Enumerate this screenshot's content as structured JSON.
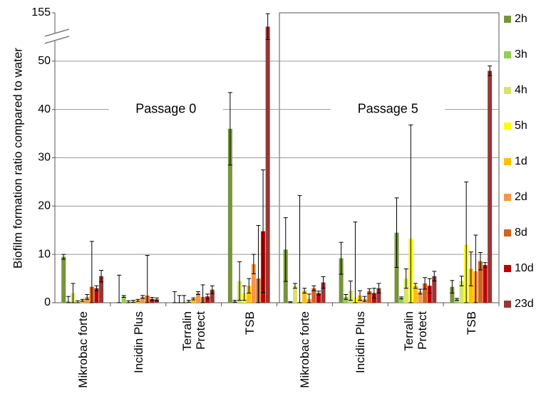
{
  "chart_data": {
    "type": "bar",
    "ylabel": "Biofilm formation ratio compared to water",
    "categories": [
      "Mikrobac forte",
      "Incidin Plus",
      "Terralin\nProtect",
      "TSB",
      "Mikrobac forte",
      "Incidin Plus",
      "Terralin\nProtect",
      "TSB"
    ],
    "panels": [
      "Passage 0",
      "Passage 5"
    ],
    "ylim": [
      0,
      155
    ],
    "yticks": [
      0,
      10,
      20,
      30,
      40,
      50,
      155
    ],
    "axis_break": true,
    "grid": true,
    "legend": "right",
    "series": [
      {
        "name": "2h",
        "color": "#77933c",
        "values": [
          9.5,
          0.1,
          0.1,
          36,
          11,
          9.2,
          14.5,
          3.3
        ],
        "errors": [
          0.5,
          5.6,
          2.2,
          7.5,
          6.6,
          3.3,
          7.2,
          1.3
        ]
      },
      {
        "name": "3h",
        "color": "#92d050",
        "values": [
          0.3,
          1.3,
          0.1,
          0.3,
          0.1,
          1.2,
          1,
          0.7
        ],
        "errors": [
          1,
          0.2,
          1.4,
          0.2,
          0.1,
          0.5,
          0.2,
          0.2
        ]
      },
      {
        "name": "4h",
        "color": "#d7e36b",
        "values": [
          2,
          0.2,
          0.1,
          4.5,
          3.5,
          2.5,
          5,
          4.5
        ],
        "errors": [
          2,
          0.2,
          1.4,
          4,
          0.5,
          2,
          2,
          1
        ]
      },
      {
        "name": "5h",
        "color": "#ffff00",
        "values": [
          0.2,
          0.3,
          0.3,
          2,
          0.2,
          1,
          13.3,
          12
        ],
        "errors": [
          0.2,
          0.2,
          0.2,
          1.5,
          22,
          15.7,
          23.5,
          13
        ]
      },
      {
        "name": "1d",
        "color": "#ffc000",
        "values": [
          0.5,
          0.5,
          0.8,
          3.5,
          2.5,
          1.5,
          3.5,
          7
        ],
        "errors": [
          0.2,
          0.2,
          0.2,
          1.5,
          0.5,
          1,
          0.5,
          3.5
        ]
      },
      {
        "name": "2d",
        "color": "#f79646",
        "values": [
          1.2,
          1.2,
          2,
          8,
          0.8,
          0.8,
          2.3,
          6.5
        ],
        "errors": [
          0.5,
          0.3,
          0.3,
          2,
          1,
          0.5,
          0.5,
          7.5
        ]
      },
      {
        "name": "8d",
        "color": "#d4621a",
        "values": [
          3.3,
          1.5,
          1.2,
          5,
          3,
          2.4,
          4,
          8.6
        ],
        "errors": [
          9.4,
          8.3,
          2.5,
          11,
          0.5,
          0.5,
          1.2,
          1.8
        ]
      },
      {
        "name": "10d",
        "color": "#c00000",
        "values": [
          3,
          0.8,
          1.3,
          14.8,
          2,
          2,
          3.5,
          7.8
        ],
        "errors": [
          0.5,
          0.3,
          0.5,
          12.7,
          0.4,
          1,
          1.5,
          0.5
        ]
      },
      {
        "name": "23d",
        "color": "#953735",
        "values": [
          5.5,
          0.7,
          2.7,
          125,
          4.2,
          3,
          5.5,
          48
        ],
        "errors": [
          1.2,
          0.3,
          0.8,
          28,
          1.2,
          1,
          1,
          1
        ]
      }
    ]
  }
}
